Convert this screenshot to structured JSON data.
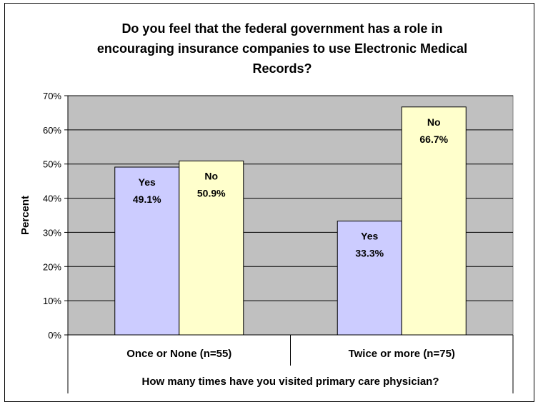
{
  "chart_data": {
    "type": "bar",
    "title": "Do you feel that the federal government has a role in encouraging insurance companies to use Electronic Medical Records?",
    "title_lines": [
      "Do you feel that the federal government has a role in",
      "encouraging insurance companies to use Electronic Medical",
      "Records?"
    ],
    "categories": [
      "Once or None  (n=55)",
      "Twice or more  (n=75)"
    ],
    "series": [
      {
        "name": "Yes",
        "values": [
          49.1,
          33.3
        ],
        "labels": [
          "49.1%",
          "33.3%"
        ],
        "color": "#ccccff"
      },
      {
        "name": "No",
        "values": [
          50.9,
          66.7
        ],
        "labels": [
          "50.9%",
          "66.7%"
        ],
        "color": "#ffffcc"
      }
    ],
    "xlabel": "How many times have you visited primary care physician?",
    "ylabel": "Percent",
    "ylim": [
      0,
      70
    ],
    "yticks": [
      0,
      10,
      20,
      30,
      40,
      50,
      60,
      70
    ],
    "ytick_labels": [
      "0%",
      "10%",
      "20%",
      "30%",
      "40%",
      "50%",
      "60%",
      "70%"
    ],
    "grid": true,
    "legend": "none",
    "plot_background": "#c0c0c0"
  }
}
